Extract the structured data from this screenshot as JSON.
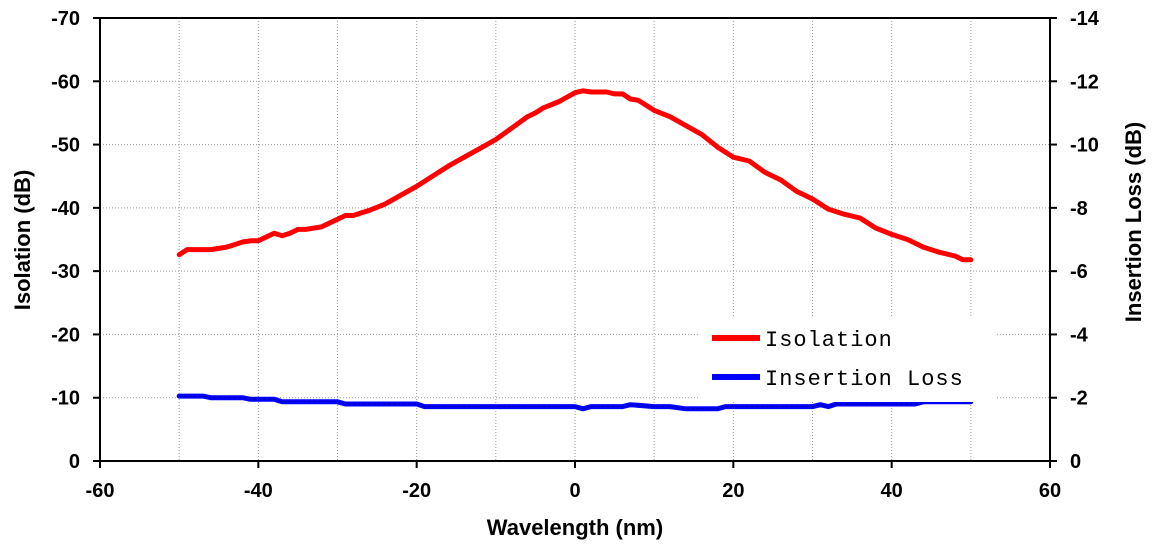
{
  "chart_data": {
    "type": "line",
    "title": "",
    "xlabel": "Wavelength (nm)",
    "ylabel": "Isolation (dB)",
    "y2label": "Insertion Loss (dB)",
    "xlim": [
      -60,
      60
    ],
    "xticks": [
      -60,
      -40,
      -20,
      0,
      20,
      40,
      60
    ],
    "ylim": [
      0,
      -70
    ],
    "yticks": [
      0,
      -10,
      -20,
      -30,
      -40,
      -50,
      -60,
      -70
    ],
    "y2lim": [
      0,
      -14
    ],
    "y2ticks": [
      0,
      -2,
      -4,
      -6,
      -8,
      -10,
      -12,
      -14
    ],
    "grid": true,
    "legend_position": "lower-right",
    "series": [
      {
        "name": "Isolation",
        "axis": "left",
        "color": "#ff0000",
        "x": [
          -50,
          -49,
          -48,
          -46,
          -45,
          -44,
          -43,
          -42,
          -41,
          -40,
          -39,
          -38,
          -37,
          -36,
          -35,
          -34,
          -32,
          -31,
          -30,
          -29,
          -28,
          -27,
          -26,
          -24,
          -22,
          -20,
          -18,
          -16,
          -14,
          -12,
          -10,
          -8,
          -6,
          -5,
          -4,
          -2,
          0,
          1,
          2,
          3,
          4,
          5,
          6,
          7,
          8,
          10,
          12,
          14,
          16,
          18,
          20,
          22,
          24,
          26,
          28,
          30,
          32,
          34,
          36,
          38,
          40,
          42,
          44,
          46,
          48,
          49,
          50
        ],
        "y": [
          -32.6,
          -33.4,
          -33.4,
          -33.4,
          -33.6,
          -33.8,
          -34.2,
          -34.6,
          -34.8,
          -34.8,
          -35.4,
          -36.0,
          -35.6,
          -36.0,
          -36.6,
          -36.6,
          -37.0,
          -37.6,
          -38.2,
          -38.8,
          -38.8,
          -39.2,
          -39.6,
          -40.6,
          -42.0,
          -43.4,
          -45.0,
          -46.6,
          -48.0,
          -49.4,
          -50.8,
          -52.6,
          -54.4,
          -55.0,
          -55.8,
          -56.8,
          -58.2,
          -58.5,
          -58.3,
          -58.3,
          -58.3,
          -58.0,
          -58.0,
          -57.2,
          -57.0,
          -55.4,
          -54.4,
          -53.0,
          -51.6,
          -49.6,
          -48.0,
          -47.4,
          -45.6,
          -44.4,
          -42.6,
          -41.4,
          -39.8,
          -39.0,
          -38.4,
          -36.8,
          -35.8,
          -35.0,
          -33.8,
          -33.0,
          -32.4,
          -31.8,
          -31.8
        ]
      },
      {
        "name": "Insertion Loss",
        "axis": "right",
        "color": "#0000ff",
        "x": [
          -50,
          -47,
          -46,
          -42,
          -41,
          -38,
          -37,
          -30,
          -29,
          -20,
          -19,
          -10,
          0,
          1,
          2,
          6,
          7,
          10,
          12,
          14,
          16,
          18,
          19,
          30,
          31,
          32,
          33,
          40,
          43,
          44,
          50
        ],
        "y": [
          -2.05,
          -2.05,
          -2.0,
          -2.0,
          -1.95,
          -1.95,
          -1.87,
          -1.87,
          -1.8,
          -1.8,
          -1.72,
          -1.72,
          -1.72,
          -1.65,
          -1.72,
          -1.72,
          -1.78,
          -1.72,
          -1.72,
          -1.65,
          -1.65,
          -1.65,
          -1.72,
          -1.72,
          -1.78,
          -1.72,
          -1.8,
          -1.8,
          -1.8,
          -1.87,
          -1.87
        ]
      }
    ]
  }
}
